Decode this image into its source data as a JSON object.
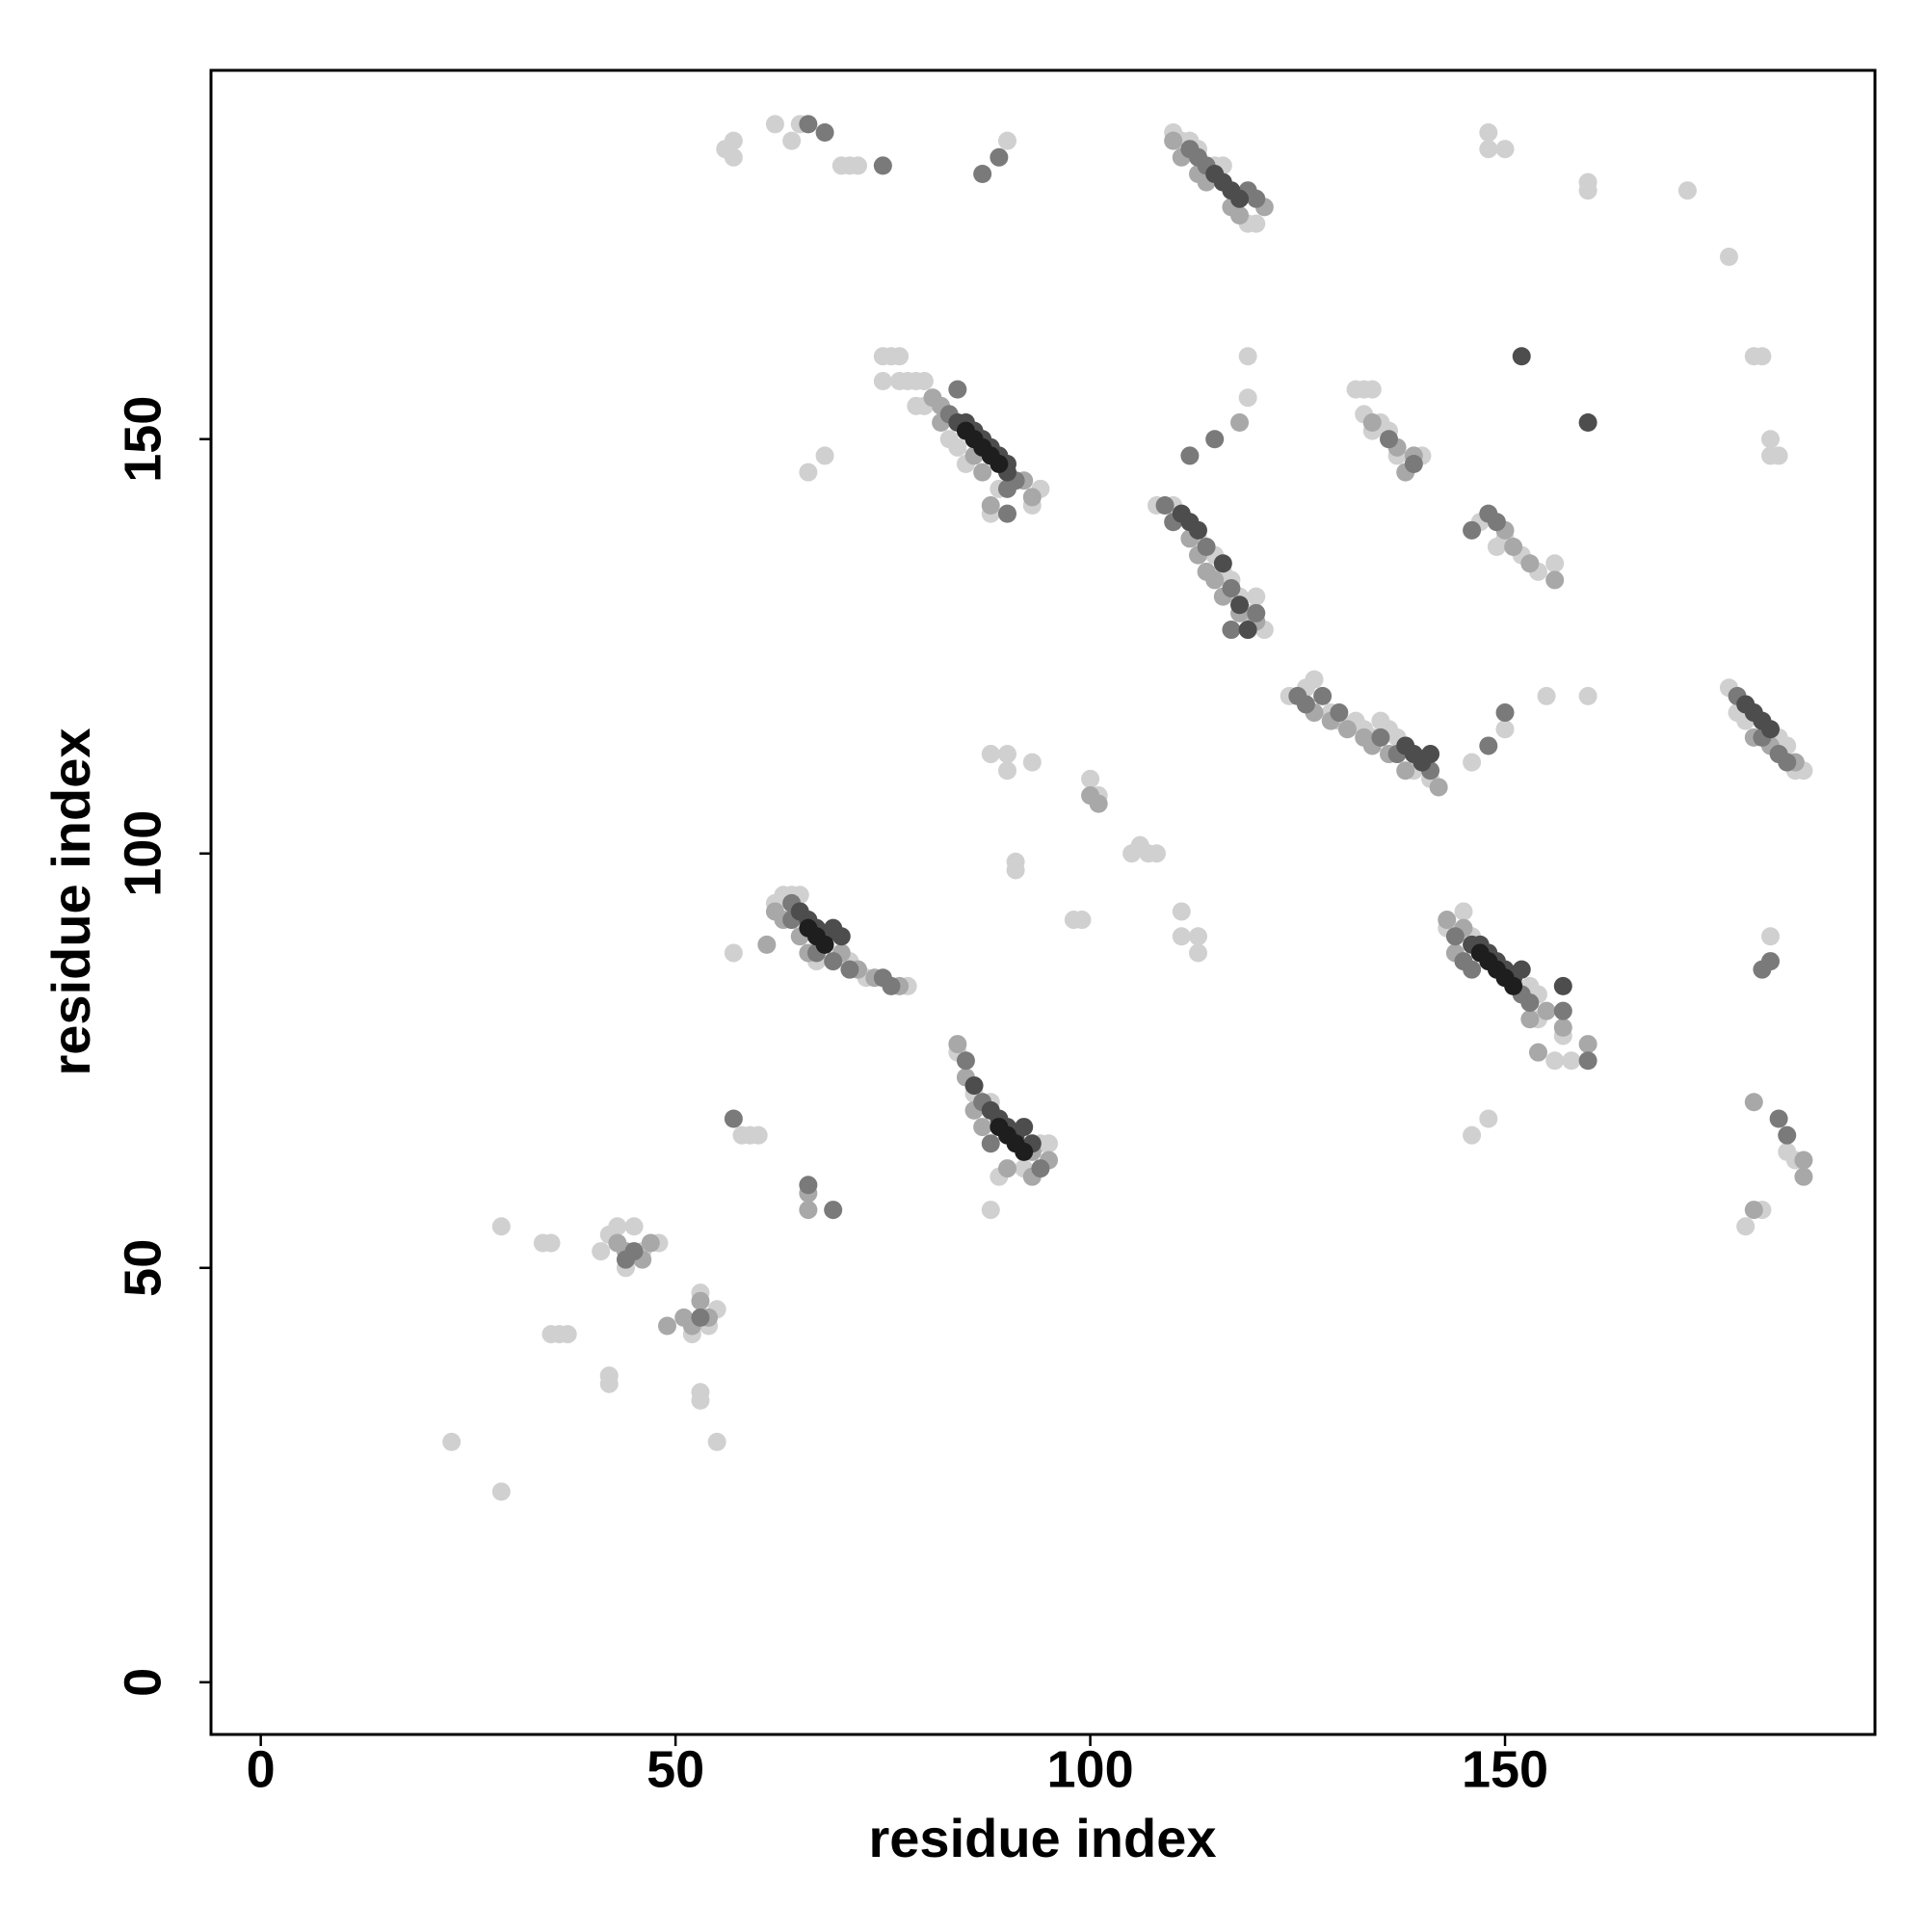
{
  "chart_data": {
    "type": "scatter",
    "xlabel": "residue index",
    "ylabel": "residue index",
    "xlim": [
      -6,
      194.6
    ],
    "ylim": [
      -6.3,
      194.5
    ],
    "xticks": [
      0,
      50,
      100,
      150
    ],
    "yticks": [
      0,
      50,
      100,
      150
    ],
    "series": [
      {
        "color": "#d0d0d0",
        "x": [
          110,
          111,
          112,
          113,
          115,
          116,
          119,
          120,
          75,
          76,
          77,
          75,
          77,
          78,
          79,
          80,
          79,
          80,
          83,
          84,
          85,
          89,
          93,
          94,
          88,
          64,
          65,
          62,
          56,
          57,
          57,
          70,
          71,
          72,
          75,
          90,
          66,
          68,
          62,
          63,
          64,
          65,
          67,
          71,
          73,
          78,
          143,
          145,
          146,
          153,
          154,
          154,
          157,
          156,
          158,
          84,
          86,
          88,
          94,
          95,
          92,
          89,
          88,
          108,
          110,
          113,
          115,
          116,
          117,
          118,
          119,
          120,
          121,
          124,
          126,
          127,
          129,
          130,
          132,
          133,
          134,
          135,
          136,
          137,
          139,
          141,
          177,
          178,
          179,
          183,
          184,
          185,
          186,
          184,
          185,
          179,
          181,
          182,
          182,
          183,
          182,
          180,
          181,
          177,
          172,
          160,
          160,
          148,
          148,
          150,
          119,
          119,
          132,
          133,
          134,
          133,
          134,
          135,
          136,
          137,
          140,
          147,
          149,
          150,
          152,
          154,
          156,
          155,
          160,
          146,
          150,
          146,
          148,
          88,
          90,
          90,
          93,
          100,
          101,
          105,
          106,
          107,
          108,
          98,
          99,
          111,
          111,
          113,
          113,
          91,
          91,
          57,
          58,
          60,
          59,
          43,
          42,
          41,
          44,
          45,
          46,
          48,
          55,
          53,
          52,
          54,
          29,
          34,
          35,
          35,
          36,
          37,
          42,
          42,
          53,
          53,
          55,
          23,
          29
        ],
        "values": [
          187,
          186,
          186,
          185,
          183,
          183,
          176,
          176,
          160,
          160,
          160,
          157,
          157,
          157,
          157,
          157,
          154,
          154,
          150,
          149,
          147,
          144,
          142,
          144,
          141,
          186,
          188,
          188,
          185,
          186,
          184,
          183,
          183,
          183,
          183,
          186,
          146,
          148,
          94,
          95,
          95,
          95,
          87,
          87,
          85,
          84,
          91,
          93,
          90,
          84,
          83,
          80,
          78,
          75,
          75,
          76,
          71,
          70,
          65,
          65,
          62,
          61,
          57,
          142,
          142,
          138,
          136,
          134,
          133,
          131,
          129,
          131,
          127,
          119,
          120,
          121,
          117,
          116,
          116,
          115,
          114,
          116,
          115,
          114,
          110,
          109,
          120,
          117,
          116,
          114,
          113,
          110,
          110,
          64,
          63,
          55,
          57,
          90,
          148,
          148,
          150,
          160,
          160,
          172,
          180,
          180,
          181,
          187,
          185,
          185,
          155,
          160,
          156,
          156,
          156,
          153,
          151,
          152,
          151,
          148,
          148,
          140,
          137,
          138,
          136,
          134,
          135,
          119,
          119,
          111,
          115,
          66,
          68,
          112,
          112,
          110,
          111,
          109,
          107,
          100,
          101,
          100,
          100,
          92,
          92,
          93,
          90,
          90,
          88,
          98,
          99,
          88,
          66,
          66,
          66,
          55,
          54,
          52,
          50,
          55,
          52,
          53,
          45,
          47,
          42,
          43,
          55,
          53,
          53,
          42,
          42,
          42,
          37,
          36,
          35,
          34,
          29,
          29,
          23
        ]
      },
      {
        "color": "#a8a8a8",
        "x": [
          110,
          111,
          113,
          114,
          117,
          118,
          121,
          81,
          82,
          82,
          86,
          87,
          92,
          93,
          88,
          62,
          63,
          65,
          66,
          70,
          72,
          74,
          77,
          143,
          144,
          145,
          153,
          155,
          157,
          154,
          160,
          84,
          85,
          86,
          87,
          93,
          95,
          93,
          90,
          112,
          113,
          114,
          115,
          116,
          118,
          120,
          127,
          129,
          131,
          133,
          134,
          136,
          138,
          142,
          180,
          182,
          185,
          186,
          186,
          180,
          180,
          134,
          137,
          139,
          138,
          150,
          151,
          153,
          156,
          43,
          44,
          46,
          47,
          51,
          52,
          53,
          54,
          49,
          100,
          101,
          66,
          66,
          61,
          118
        ],
        "values": [
          186,
          184,
          182,
          181,
          178,
          177,
          178,
          155,
          154,
          152,
          148,
          146,
          145,
          143,
          142,
          93,
          92,
          90,
          88,
          88,
          86,
          85,
          84,
          92,
          88,
          91,
          80,
          81,
          79,
          76,
          77,
          77,
          73,
          69,
          67,
          64,
          63,
          61,
          62,
          138,
          136,
          134,
          133,
          131,
          129,
          128,
          117,
          116,
          115,
          114,
          113,
          112,
          110,
          108,
          114,
          113,
          111,
          63,
          61,
          57,
          70,
          152,
          149,
          148,
          146,
          139,
          137,
          135,
          133,
          53,
          52,
          51,
          53,
          44,
          43,
          46,
          44,
          43,
          107,
          106,
          57,
          59,
          89,
          152
        ]
      },
      {
        "color": "#7a7a7a",
        "x": [
          112,
          113,
          114,
          119,
          120,
          84,
          83,
          90,
          90,
          91,
          64,
          64,
          67,
          69,
          71,
          75,
          76,
          144,
          145,
          146,
          152,
          153,
          157,
          85,
          87,
          88,
          94,
          109,
          110,
          114,
          117,
          120,
          117,
          125,
          126,
          128,
          130,
          135,
          137,
          141,
          178,
          181,
          183,
          184,
          182,
          181,
          183,
          184,
          136,
          139,
          148,
          149,
          146,
          66,
          68,
          75,
          87,
          89,
          112,
          115,
          69,
          66,
          45,
          44,
          53,
          57,
          148,
          150,
          160
        ],
        "values": [
          185,
          184,
          183,
          180,
          179,
          156,
          153,
          144,
          141,
          145,
          94,
          92,
          88,
          87,
          86,
          85,
          84,
          90,
          87,
          86,
          83,
          82,
          81,
          75,
          70,
          65,
          62,
          142,
          140,
          137,
          132,
          129,
          127,
          119,
          118,
          119,
          117,
          114,
          112,
          110,
          119,
          114,
          112,
          111,
          87,
          86,
          68,
          66,
          150,
          147,
          141,
          140,
          139,
          188,
          187,
          183,
          182,
          184,
          148,
          150,
          57,
          60,
          52,
          51,
          44,
          68,
          113,
          117,
          75
        ]
      },
      {
        "color": "#4d4d4d",
        "x": [
          84,
          85,
          86,
          87,
          88,
          89,
          90,
          90,
          152,
          160,
          65,
          66,
          67,
          68,
          69,
          70,
          146,
          147,
          148,
          149,
          150,
          151,
          152,
          157,
          86,
          88,
          89,
          90,
          91,
          92,
          93,
          115,
          116,
          117,
          118,
          179,
          180,
          181,
          182,
          138,
          139,
          140,
          141,
          111,
          112,
          113,
          116,
          118,
          119
        ],
        "values": [
          152,
          152,
          151,
          150,
          149,
          148,
          147,
          146,
          160,
          152,
          93,
          92,
          91,
          90,
          91,
          90,
          89,
          89,
          88,
          87,
          86,
          85,
          86,
          84,
          72,
          69,
          68,
          67,
          66,
          67,
          65,
          182,
          181,
          180,
          179,
          118,
          117,
          116,
          115,
          113,
          112,
          111,
          112,
          141,
          140,
          139,
          135,
          130,
          127
        ]
      },
      {
        "color": "#1e1e1e",
        "x": [
          85,
          86,
          87,
          88,
          89,
          66,
          67,
          68,
          147,
          148,
          149,
          150,
          151,
          89,
          90,
          91,
          92
        ],
        "values": [
          151,
          150,
          149,
          148,
          147,
          91,
          90,
          89,
          88,
          87,
          86,
          85,
          84,
          67,
          66,
          65,
          64
        ]
      }
    ]
  }
}
